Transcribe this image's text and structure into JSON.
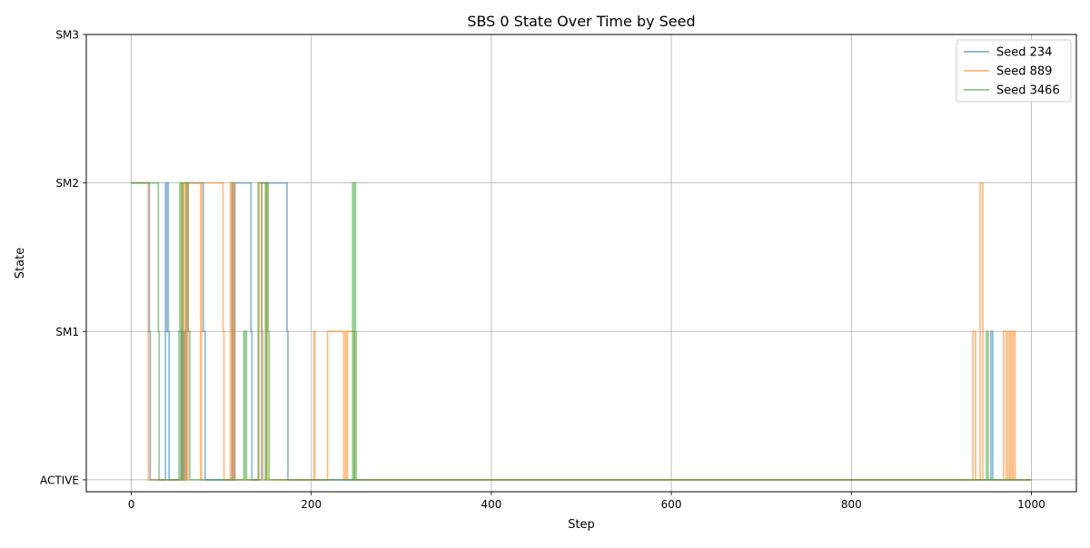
{
  "chart_data": {
    "type": "line",
    "title": "SBS 0 State Over Time by Seed",
    "xlabel": "Step",
    "ylabel": "State",
    "xlim": [
      -50,
      1050
    ],
    "ylim": [
      -0.08,
      3.0
    ],
    "x_ticks": [
      0,
      200,
      400,
      600,
      800,
      1000
    ],
    "x_tick_labels": [
      "0",
      "200",
      "400",
      "600",
      "800",
      "1000"
    ],
    "y_ticks": [
      0,
      1,
      2,
      3
    ],
    "y_tick_labels": [
      "ACTIVE",
      "SM1",
      "SM2",
      "SM3"
    ],
    "grid": true,
    "legend_position": "top-right",
    "series": [
      {
        "name": "Seed 234",
        "color": "#1f77b4",
        "alpha": 0.5,
        "points": [
          [
            0,
            2
          ],
          [
            20,
            2
          ],
          [
            20,
            1
          ],
          [
            21,
            1
          ],
          [
            21,
            0
          ],
          [
            38,
            0
          ],
          [
            38,
            2
          ],
          [
            39,
            2
          ],
          [
            39,
            1
          ],
          [
            40,
            1
          ],
          [
            40,
            2
          ],
          [
            41,
            2
          ],
          [
            41,
            1
          ],
          [
            42,
            1
          ],
          [
            42,
            0
          ],
          [
            55,
            0
          ],
          [
            55,
            1
          ],
          [
            58,
            1
          ],
          [
            58,
            0
          ],
          [
            59,
            0
          ],
          [
            59,
            1
          ],
          [
            60,
            1
          ],
          [
            60,
            0
          ],
          [
            61,
            0
          ],
          [
            61,
            2
          ],
          [
            80,
            2
          ],
          [
            80,
            1
          ],
          [
            82,
            1
          ],
          [
            82,
            0
          ],
          [
            112,
            0
          ],
          [
            112,
            2
          ],
          [
            113,
            2
          ],
          [
            113,
            1
          ],
          [
            114,
            1
          ],
          [
            114,
            0
          ],
          [
            115,
            0
          ],
          [
            115,
            2
          ],
          [
            133,
            2
          ],
          [
            133,
            1
          ],
          [
            134,
            1
          ],
          [
            134,
            0
          ],
          [
            145,
            0
          ],
          [
            145,
            2
          ],
          [
            173,
            2
          ],
          [
            173,
            1
          ],
          [
            174,
            1
          ],
          [
            174,
            0
          ],
          [
            955,
            0
          ],
          [
            955,
            1
          ],
          [
            957,
            1
          ],
          [
            957,
            0
          ],
          [
            1000,
            0
          ]
        ]
      },
      {
        "name": "Seed 889",
        "color": "#ff7f0e",
        "alpha": 0.5,
        "points": [
          [
            0,
            2
          ],
          [
            19,
            2
          ],
          [
            19,
            0
          ],
          [
            56,
            0
          ],
          [
            56,
            2
          ],
          [
            57,
            2
          ],
          [
            57,
            0
          ],
          [
            58,
            0
          ],
          [
            58,
            2
          ],
          [
            60,
            2
          ],
          [
            60,
            0
          ],
          [
            61,
            0
          ],
          [
            61,
            2
          ],
          [
            62,
            2
          ],
          [
            62,
            0
          ],
          [
            63,
            0
          ],
          [
            63,
            2
          ],
          [
            77,
            2
          ],
          [
            77,
            0
          ],
          [
            78,
            0
          ],
          [
            78,
            2
          ],
          [
            102,
            2
          ],
          [
            102,
            1
          ],
          [
            103,
            1
          ],
          [
            103,
            0
          ],
          [
            110,
            0
          ],
          [
            110,
            2
          ],
          [
            111,
            2
          ],
          [
            111,
            1
          ],
          [
            112,
            1
          ],
          [
            112,
            0
          ],
          [
            113,
            0
          ],
          [
            113,
            2
          ],
          [
            115,
            2
          ],
          [
            115,
            0
          ],
          [
            142,
            0
          ],
          [
            142,
            2
          ],
          [
            145,
            2
          ],
          [
            145,
            1
          ],
          [
            146,
            1
          ],
          [
            146,
            0
          ],
          [
            150,
            0
          ],
          [
            150,
            2
          ],
          [
            151,
            2
          ],
          [
            151,
            0
          ],
          [
            203,
            0
          ],
          [
            203,
            1
          ],
          [
            204,
            1
          ],
          [
            204,
            0
          ],
          [
            218,
            0
          ],
          [
            218,
            1
          ],
          [
            236,
            1
          ],
          [
            236,
            0
          ],
          [
            238,
            0
          ],
          [
            238,
            1
          ],
          [
            239,
            1
          ],
          [
            239,
            0
          ],
          [
            240,
            0
          ],
          [
            240,
            1
          ],
          [
            248,
            1
          ],
          [
            248,
            0
          ],
          [
            935,
            0
          ],
          [
            935,
            1
          ],
          [
            938,
            1
          ],
          [
            938,
            0
          ],
          [
            943,
            0
          ],
          [
            943,
            2
          ],
          [
            946,
            2
          ],
          [
            946,
            0
          ],
          [
            969,
            0
          ],
          [
            969,
            1
          ],
          [
            972,
            1
          ],
          [
            972,
            0
          ],
          [
            974,
            0
          ],
          [
            974,
            1
          ],
          [
            976,
            1
          ],
          [
            976,
            0
          ],
          [
            977,
            0
          ],
          [
            977,
            1
          ],
          [
            979,
            1
          ],
          [
            979,
            0
          ],
          [
            980,
            0
          ],
          [
            980,
            1
          ],
          [
            982,
            1
          ],
          [
            982,
            0
          ],
          [
            1000,
            0
          ]
        ]
      },
      {
        "name": "Seed 3466",
        "color": "#2ca02c",
        "alpha": 0.5,
        "points": [
          [
            0,
            2
          ],
          [
            30,
            2
          ],
          [
            30,
            1
          ],
          [
            31,
            1
          ],
          [
            31,
            0
          ],
          [
            53,
            0
          ],
          [
            53,
            1
          ],
          [
            54,
            1
          ],
          [
            54,
            2
          ],
          [
            56,
            2
          ],
          [
            56,
            0
          ],
          [
            57,
            0
          ],
          [
            57,
            2
          ],
          [
            63,
            2
          ],
          [
            63,
            1
          ],
          [
            65,
            1
          ],
          [
            65,
            0
          ],
          [
            125,
            0
          ],
          [
            125,
            1
          ],
          [
            126,
            1
          ],
          [
            126,
            0
          ],
          [
            127,
            0
          ],
          [
            127,
            1
          ],
          [
            128,
            1
          ],
          [
            128,
            0
          ],
          [
            141,
            0
          ],
          [
            141,
            2
          ],
          [
            149,
            2
          ],
          [
            149,
            0
          ],
          [
            150,
            0
          ],
          [
            150,
            2
          ],
          [
            152,
            2
          ],
          [
            152,
            1
          ],
          [
            153,
            1
          ],
          [
            153,
            0
          ],
          [
            246,
            0
          ],
          [
            246,
            2
          ],
          [
            247,
            2
          ],
          [
            247,
            0
          ],
          [
            248,
            0
          ],
          [
            248,
            2
          ],
          [
            249,
            2
          ],
          [
            249,
            1
          ],
          [
            250,
            1
          ],
          [
            250,
            0
          ],
          [
            950,
            0
          ],
          [
            950,
            1
          ],
          [
            952,
            1
          ],
          [
            952,
            0
          ],
          [
            1000,
            0
          ]
        ]
      }
    ]
  }
}
